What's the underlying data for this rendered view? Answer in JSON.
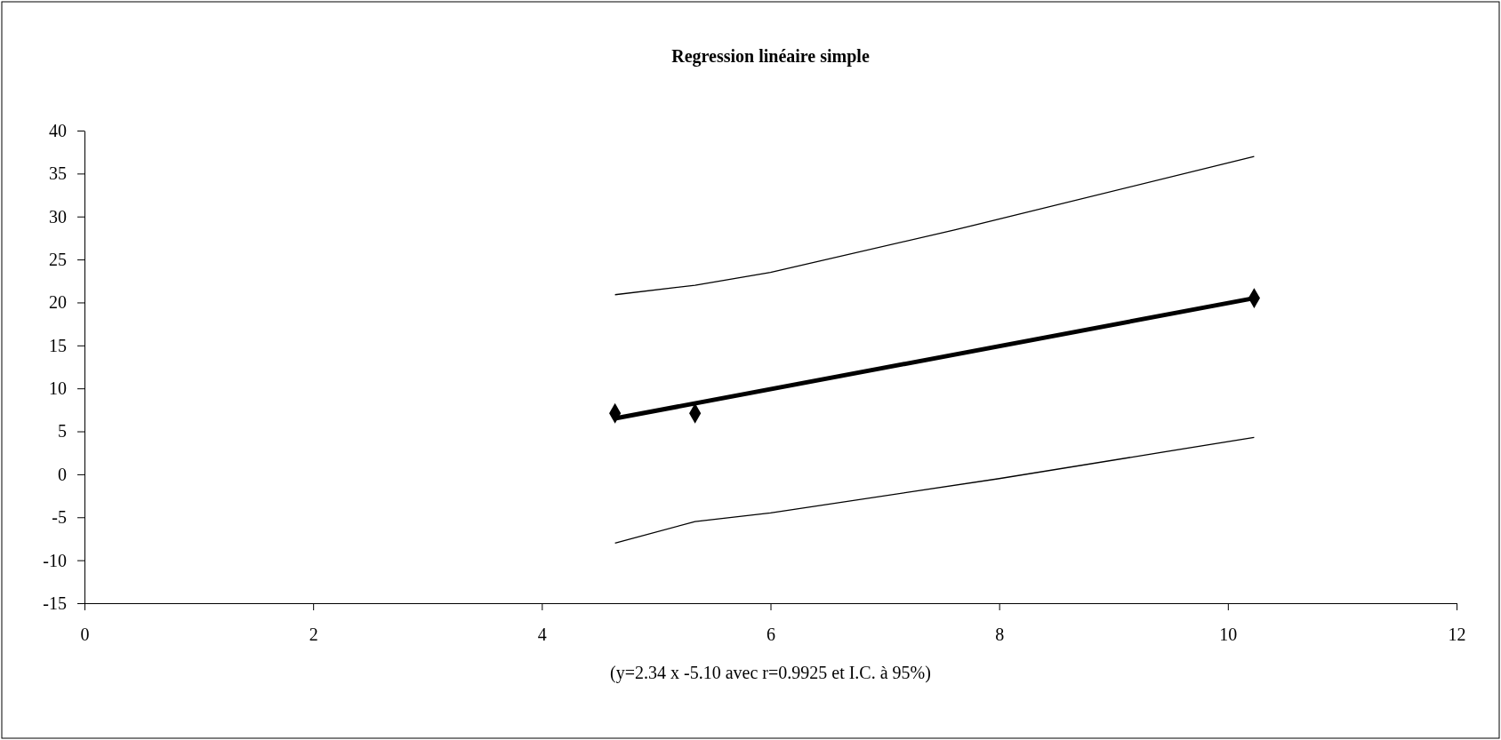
{
  "chart_data": {
    "type": "line",
    "title": "Regression linéaire simple",
    "xlabel": "(y=2.34 x   -5.10 avec r=0.9925 et I.C. à 95%)",
    "xlim": [
      0,
      12
    ],
    "ylim": [
      -15,
      40
    ],
    "xticks": [
      0,
      2,
      4,
      6,
      8,
      10,
      12
    ],
    "yticks": [
      -15,
      -10,
      -5,
      0,
      5,
      10,
      15,
      20,
      25,
      30,
      35,
      40
    ],
    "grid": false,
    "series": [
      {
        "type": "scatter",
        "marker": "diamond",
        "color": "#000000",
        "x": [
          4.64,
          5.34,
          10.23
        ],
        "values": [
          7.1,
          7.1,
          20.5
        ]
      },
      {
        "type": "line",
        "color": "#000000",
        "x": [
          4.64,
          10.23
        ],
        "values": [
          6.5,
          20.5
        ]
      },
      {
        "type": "line",
        "color": "#000000",
        "x": [
          4.64,
          5.34,
          6,
          7.6,
          10.23
        ],
        "values": [
          20.9,
          22.0,
          23.5,
          28.4,
          37.0
        ]
      },
      {
        "type": "line",
        "color": "#000000",
        "x": [
          4.64,
          5.34,
          6,
          8,
          10.23
        ],
        "values": [
          -8.0,
          -5.5,
          -4.5,
          -0.5,
          4.3
        ]
      }
    ]
  }
}
